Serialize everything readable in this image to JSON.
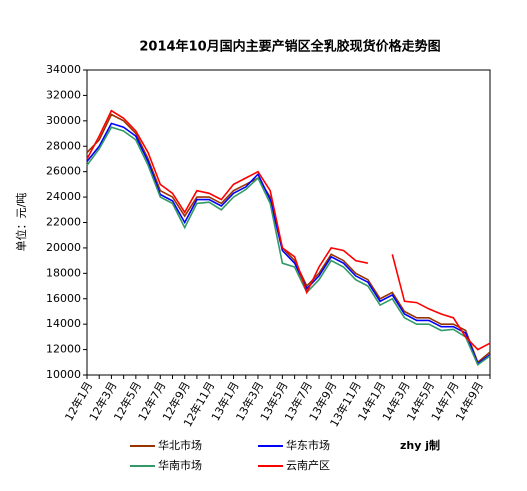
{
  "chart_data": {
    "type": "line",
    "title": "2014年10月国内主要产销区全乳胶现货价格走势图",
    "y_label": "单位：元/吨",
    "credit": "zhy j制",
    "categories": [
      "12年1月",
      null,
      "12年3月",
      null,
      "12年5月",
      null,
      "12年7月",
      null,
      "12年9月",
      null,
      "12年11月",
      null,
      "13年1月",
      null,
      "13年3月",
      null,
      "13年5月",
      null,
      "13年7月",
      null,
      "13年9月",
      null,
      "13年11月",
      null,
      "14年1月",
      null,
      "14年3月",
      null,
      "14年5月",
      null,
      "14年7月",
      null,
      "14年9月",
      null
    ],
    "series": [
      {
        "name": "华北市场",
        "color": "#993300",
        "values": [
          27500,
          28500,
          30500,
          30000,
          29000,
          27000,
          24500,
          24000,
          22500,
          24000,
          24000,
          23500,
          24500,
          25000,
          25500,
          24000,
          20000,
          19000,
          17000,
          18000,
          19500,
          19000,
          18000,
          17500,
          16000,
          16500,
          15000,
          14500,
          14500,
          14000,
          14000,
          13500,
          11000,
          11800
        ]
      },
      {
        "name": "华东市场",
        "color": "#0000ff",
        "values": [
          26800,
          28000,
          29800,
          29500,
          28800,
          26800,
          24200,
          23700,
          22000,
          23800,
          23800,
          23300,
          24300,
          24800,
          25800,
          23800,
          19800,
          18800,
          16800,
          17800,
          19300,
          18800,
          17800,
          17300,
          15800,
          16300,
          14800,
          14300,
          14300,
          13800,
          13800,
          13300,
          10900,
          11600
        ]
      },
      {
        "name": "华南市场",
        "color": "#339966",
        "values": [
          26500,
          27800,
          29500,
          29200,
          28500,
          26500,
          24000,
          23500,
          21600,
          23500,
          23600,
          23000,
          24000,
          24600,
          25500,
          23500,
          18800,
          18500,
          16500,
          17500,
          19000,
          18500,
          17500,
          17000,
          15500,
          16000,
          14500,
          14000,
          14000,
          13500,
          13600,
          13000,
          10800,
          11500
        ]
      },
      {
        "name": "云南产区",
        "color": "#ff0000",
        "values": [
          27000,
          28800,
          30800,
          30200,
          29200,
          27500,
          25000,
          24300,
          22800,
          24500,
          24300,
          23800,
          25000,
          25500,
          26000,
          24500,
          20000,
          19300,
          16500,
          18500,
          20000,
          19800,
          19000,
          18800,
          null,
          19500,
          15800,
          15700,
          15200,
          14800,
          14500,
          13000,
          12000,
          12500
        ]
      }
    ],
    "ylim": [
      10000,
      34000
    ],
    "yticks": [
      10000,
      12000,
      14000,
      16000,
      18000,
      20000,
      22000,
      24000,
      26000,
      28000,
      30000,
      32000,
      34000
    ]
  }
}
